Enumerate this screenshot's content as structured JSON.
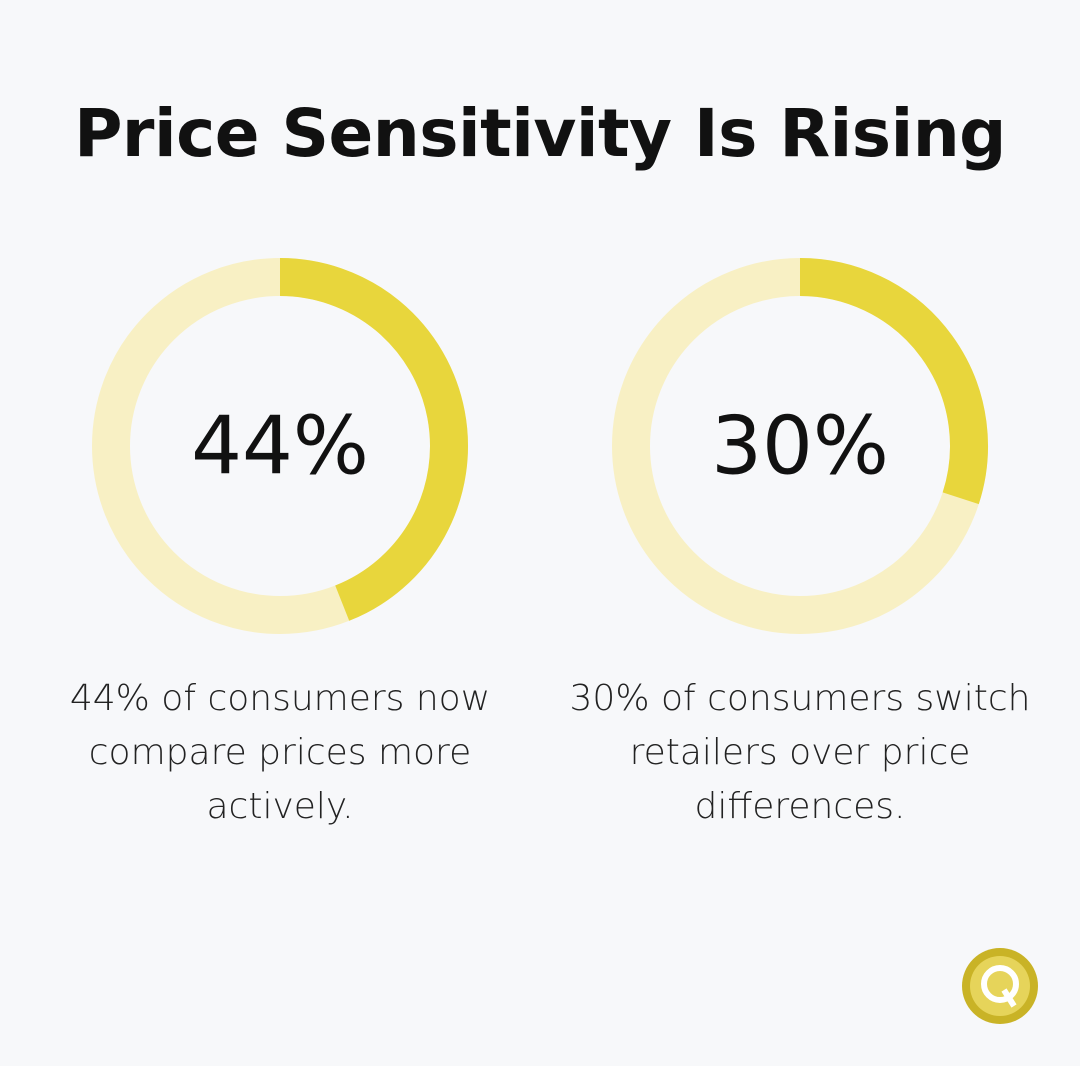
{
  "title": "Price Sensitivity Is Rising",
  "chart_data": [
    {
      "type": "donut",
      "values": [
        44
      ],
      "value_labels": [
        "44%"
      ],
      "color": "#e8d63c",
      "track_color": "#f8f0c4",
      "caption": "44% of consumers now compare prices more actively."
    },
    {
      "type": "donut",
      "values": [
        30
      ],
      "value_labels": [
        "30%"
      ],
      "color": "#e8d63c",
      "track_color": "#f8f0c4",
      "caption": "30% of consumers switch retailers over price differences."
    }
  ]
}
